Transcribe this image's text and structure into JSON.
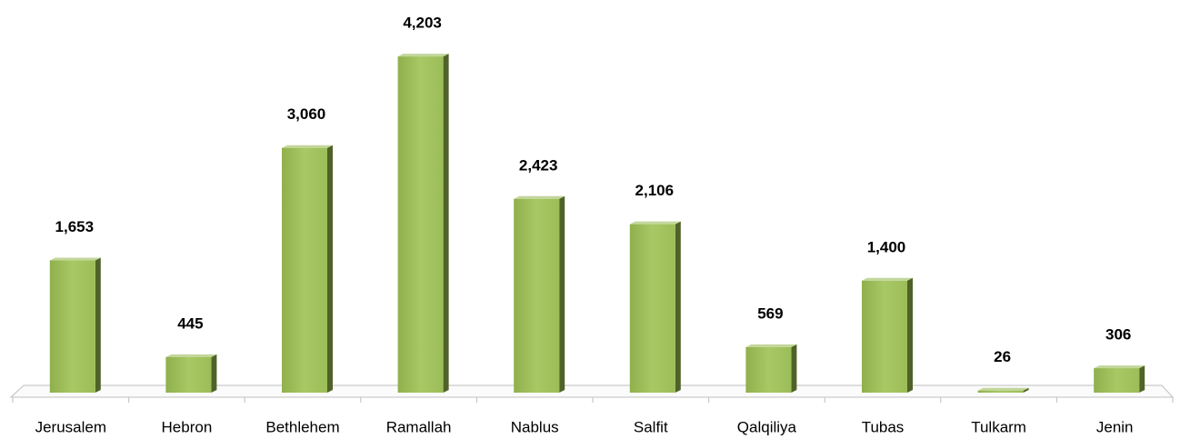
{
  "chart_data": {
    "type": "bar",
    "categories": [
      "Jerusalem",
      "Hebron",
      "Bethlehem",
      "Ramallah",
      "Nablus",
      "Salfit",
      "Qalqiliya",
      "Tubas",
      "Tulkarm",
      "Jenin"
    ],
    "values": [
      1653,
      445,
      3060,
      4203,
      2423,
      2106,
      569,
      1400,
      26,
      306
    ],
    "value_labels": [
      "1,653",
      "445",
      "3,060",
      "4,203",
      "2,423",
      "2,106",
      "569",
      "1,400",
      "26",
      "306"
    ],
    "color": "#9bbb59",
    "ylim": [
      0,
      4500
    ]
  }
}
